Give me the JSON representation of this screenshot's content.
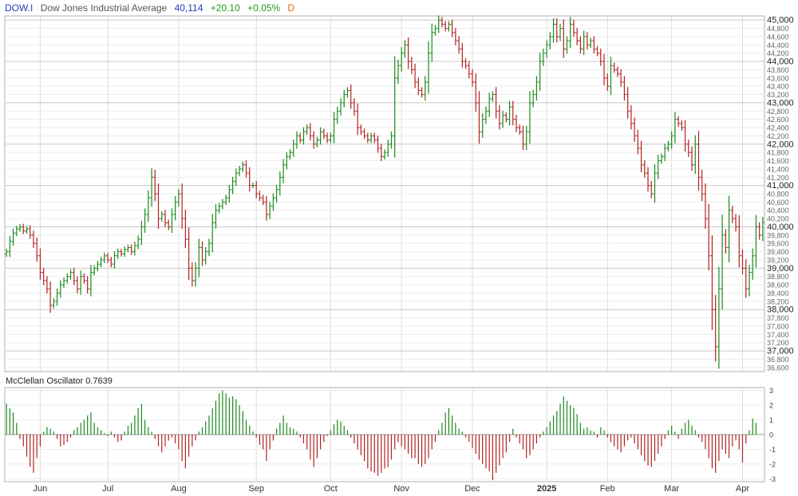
{
  "header": {
    "symbol": "DOW.I",
    "name": "Dow Jones Industrial Average",
    "last": "40,114",
    "change": "+20.10",
    "change_pct": "+0.05%",
    "period": "D"
  },
  "colors": {
    "up": "#1a8a1a",
    "down": "#b22222",
    "grid": "#dcdcdc",
    "border": "#b0b0b0",
    "text": "#333333"
  },
  "chart_data": [
    {
      "type": "ohlc",
      "title": "Dow Jones Industrial Average",
      "ylim": [
        36500,
        45100
      ],
      "y_ticks": [
        36600,
        36800,
        37000,
        37200,
        37400,
        37600,
        37800,
        38000,
        38200,
        38400,
        38600,
        38800,
        39000,
        39200,
        39400,
        39600,
        39800,
        40000,
        40200,
        40400,
        40600,
        40800,
        41000,
        41200,
        41400,
        41600,
        41800,
        42000,
        42200,
        42400,
        42600,
        42800,
        43000,
        43200,
        43400,
        43600,
        43800,
        44000,
        44200,
        44400,
        44600,
        44800,
        45000
      ],
      "y_tick_labels": [
        "36,600",
        "36,800",
        "37,000",
        "37,200",
        "37,400",
        "37,600",
        "37,800",
        "38,000",
        "38,200",
        "38,400",
        "38,600",
        "38,800",
        "39,000",
        "39,200",
        "39,400",
        "39,600",
        "39,800",
        "40,000",
        "40,200",
        "40,400",
        "40,600",
        "40,800",
        "41,000",
        "41,200",
        "41,400",
        "41,600",
        "41,800",
        "42,000",
        "42,200",
        "42,400",
        "42,600",
        "42,800",
        "43,000",
        "43,200",
        "43,400",
        "43,600",
        "43,800",
        "44,000",
        "44,200",
        "44,400",
        "44,600",
        "44,800",
        "45,000"
      ],
      "y_major": [
        37000,
        38000,
        39000,
        40000,
        41000,
        42000,
        43000,
        44000,
        45000
      ],
      "x_labels": [
        "Jun",
        "Jul",
        "Aug",
        "Sep",
        "Oct",
        "Nov",
        "Dec",
        "2025",
        "Feb",
        "Mar",
        "Apr"
      ],
      "x_label_index": [
        10,
        30,
        51,
        74,
        96,
        117,
        138,
        160,
        178,
        197,
        218
      ],
      "bold_labels": [
        "2025"
      ],
      "closes": [
        39400,
        39650,
        39850,
        39950,
        40000,
        39900,
        39950,
        39800,
        39600,
        39300,
        38900,
        38700,
        38500,
        38100,
        38200,
        38400,
        38600,
        38700,
        38800,
        38900,
        38700,
        38500,
        38800,
        38700,
        38500,
        38900,
        39000,
        39100,
        39200,
        39300,
        39200,
        39100,
        39300,
        39400,
        39350,
        39450,
        39500,
        39400,
        39550,
        39700,
        40000,
        40300,
        40700,
        41200,
        40800,
        40200,
        40300,
        40100,
        40000,
        40300,
        40600,
        40800,
        40200,
        39700,
        39000,
        38700,
        39000,
        39500,
        39200,
        39400,
        39600,
        40100,
        40400,
        40500,
        40600,
        40700,
        40900,
        41100,
        41300,
        41400,
        41500,
        41300,
        41000,
        41000,
        40800,
        40700,
        40600,
        40300,
        40500,
        40700,
        40900,
        41200,
        41500,
        41700,
        41800,
        42000,
        42200,
        42100,
        42300,
        42400,
        42200,
        42000,
        42100,
        42300,
        42200,
        42100,
        42200,
        42600,
        42800,
        43000,
        43200,
        43300,
        43000,
        42800,
        42400,
        42300,
        42200,
        42100,
        42200,
        42100,
        41900,
        41700,
        41800,
        42000,
        42200,
        43600,
        43900,
        44200,
        44400,
        44000,
        43800,
        43500,
        43300,
        43200,
        43500,
        44200,
        44700,
        44800,
        45000,
        44900,
        44800,
        44900,
        44700,
        44500,
        44300,
        44000,
        43900,
        43700,
        43500,
        43000,
        42300,
        42600,
        42800,
        43100,
        43200,
        42800,
        42500,
        42700,
        42600,
        42900,
        42600,
        42400,
        42300,
        42000,
        42300,
        43000,
        43200,
        43500,
        44000,
        44200,
        44400,
        44600,
        44900,
        44600,
        44800,
        44300,
        44500,
        44900,
        44700,
        44500,
        44300,
        44600,
        44400,
        44500,
        44300,
        44200,
        44000,
        43600,
        43400,
        43900,
        43800,
        43700,
        43500,
        43200,
        42800,
        42500,
        42200,
        41900,
        41500,
        41300,
        41000,
        40800,
        41300,
        41600,
        41700,
        41900,
        42000,
        42200,
        42600,
        42500,
        42400,
        42000,
        41800,
        41500,
        42000,
        41200,
        40800,
        40200,
        39300,
        38000,
        37100,
        38500,
        39800,
        39500,
        40400,
        40200,
        40000,
        39300,
        39000,
        38500,
        38900,
        39300,
        40000,
        39800,
        40100
      ]
    },
    {
      "type": "bar",
      "title": "McClellan Oscillator",
      "label": "McClellan Oscillator 0.7639",
      "value_label": "0.7639",
      "ylim": [
        -3.2,
        3.2
      ],
      "y_ticks": [
        3,
        2,
        1,
        0,
        -1,
        -2,
        -3
      ],
      "y_tick_labels": [
        "3",
        "2",
        "1",
        "0",
        "-1",
        "-2",
        "-3"
      ],
      "x_labels": [
        "Jun",
        "Jul",
        "Aug",
        "Sep",
        "Oct",
        "Nov",
        "Dec",
        "2025",
        "Feb",
        "Mar",
        "Apr"
      ],
      "values": [
        2.1,
        1.8,
        1.5,
        0.8,
        -0.3,
        -0.8,
        -1.5,
        -2.2,
        -2.6,
        -1.6,
        -0.8,
        0.2,
        0.5,
        0.4,
        0.2,
        -0.3,
        -0.8,
        -0.7,
        -0.5,
        -0.2,
        0.3,
        0.5,
        0.8,
        1.0,
        1.3,
        1.5,
        0.8,
        0.5,
        0.3,
        0.1,
        -0.1,
        0.2,
        -0.2,
        -0.5,
        -0.4,
        0.2,
        0.6,
        0.8,
        1.3,
        1.8,
        2.1,
        1.0,
        0.5,
        0.2,
        -0.3,
        -0.8,
        -1.2,
        -0.8,
        -0.4,
        -0.2,
        -0.6,
        -1.0,
        -1.8,
        -2.3,
        -1.5,
        -0.8,
        -0.4,
        0.2,
        0.5,
        0.9,
        1.3,
        1.8,
        2.3,
        2.8,
        3.0,
        2.8,
        2.5,
        2.6,
        2.4,
        2.0,
        1.6,
        1.0,
        0.6,
        0.2,
        -0.2,
        -0.7,
        -1.0,
        -1.8,
        -1.0,
        -0.4,
        0.4,
        0.8,
        1.3,
        0.8,
        0.5,
        0.4,
        0.2,
        -0.2,
        -0.6,
        -1.0,
        -1.7,
        -2.2,
        -1.6,
        -1.0,
        -0.5,
        -0.1,
        0.3,
        0.7,
        1.0,
        0.9,
        0.6,
        0.3,
        -0.2,
        -0.6,
        -1.0,
        -1.4,
        -1.8,
        -2.3,
        -2.5,
        -2.6,
        -2.8,
        -2.6,
        -2.3,
        -2.2,
        -1.7,
        -1.0,
        -0.5,
        -0.8,
        -1.0,
        -1.3,
        -1.6,
        -1.6,
        -2.0,
        -2.2,
        -2.0,
        -1.6,
        -1.0,
        -0.5,
        0.3,
        0.8,
        1.5,
        1.8,
        1.3,
        0.8,
        0.4,
        0.2,
        -0.2,
        -0.5,
        -0.9,
        -1.3,
        -1.7,
        -2.0,
        -2.3,
        -2.5,
        -3.1,
        -2.6,
        -2.1,
        -1.6,
        -1.2,
        -0.5,
        0.4,
        -0.2,
        -0.6,
        -1.0,
        -1.6,
        -1.4,
        -1.0,
        -0.6,
        -0.2,
        0.2,
        0.5,
        0.9,
        1.3,
        1.6,
        2.1,
        2.6,
        2.3,
        2.0,
        1.8,
        1.4,
        0.8,
        0.4,
        0.5,
        0.3,
        0.2,
        -0.2,
        0.5,
        0.3,
        -0.2,
        -0.5,
        -0.8,
        -1.0,
        -1.2,
        -0.8,
        -0.4,
        -0.2,
        -0.6,
        -1.0,
        -1.4,
        -1.8,
        -2.1,
        -2.2,
        -1.8,
        -1.3,
        -0.8,
        -0.3,
        0.3,
        0.6,
        0.2,
        -0.3,
        0.4,
        0.8,
        1.0,
        0.6,
        0.3,
        -0.2,
        -0.5,
        -1.0,
        -1.6,
        -2.3,
        -2.6,
        -1.8,
        -1.0,
        -1.3,
        -1.6,
        -0.8,
        -0.4,
        -1.0,
        -1.9,
        -0.6,
        0.3,
        1.1,
        0.8
      ]
    }
  ]
}
